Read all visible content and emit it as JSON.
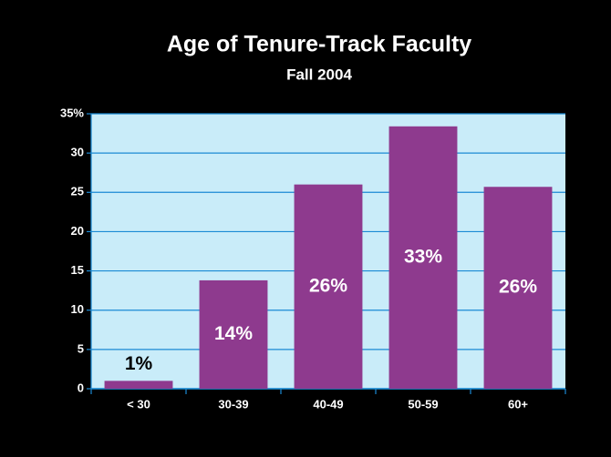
{
  "chart_data": {
    "type": "bar",
    "title": "Age of Tenure-Track Faculty",
    "subtitle": "Fall 2004",
    "categories": [
      "< 30",
      "30-39",
      "40-49",
      "50-59",
      "60+"
    ],
    "values": [
      1,
      13.8,
      26,
      33.4,
      25.7
    ],
    "value_labels": [
      "1%",
      "14%",
      "26%",
      "33%",
      "26%"
    ],
    "color": "#8e3a8e",
    "ylim": [
      0,
      35
    ],
    "yticks": [
      0,
      5,
      10,
      15,
      20,
      25,
      30,
      {
        "value": 35,
        "label": "35%"
      }
    ],
    "grid": true
  }
}
